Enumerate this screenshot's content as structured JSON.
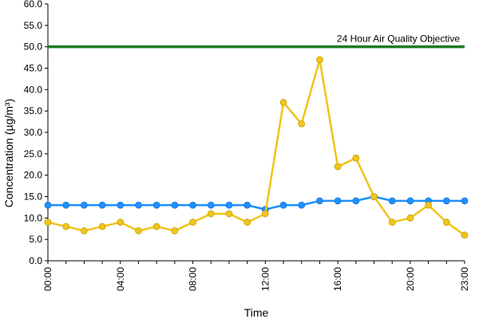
{
  "chart_data": {
    "type": "line",
    "title": "",
    "xlabel": "Time",
    "ylabel": "Concentration (µg/m³)",
    "ylim": [
      0,
      60
    ],
    "y_ticks": [
      0,
      5,
      10,
      15,
      20,
      25,
      30,
      35,
      40,
      45,
      50,
      55,
      60
    ],
    "y_tick_labels": [
      "0.0",
      "5.0",
      "10.0",
      "15.0",
      "20.0",
      "25.0",
      "30.0",
      "35.0",
      "40.0",
      "45.0",
      "50.0",
      "55.0",
      "60.0"
    ],
    "x_hours": [
      0,
      1,
      2,
      3,
      4,
      5,
      6,
      7,
      8,
      9,
      10,
      11,
      12,
      13,
      14,
      15,
      16,
      17,
      18,
      19,
      20,
      21,
      22,
      23
    ],
    "x_tick_labels": [
      {
        "hour": 0,
        "label": "00:00"
      },
      {
        "hour": 4,
        "label": "04:00"
      },
      {
        "hour": 8,
        "label": "08:00"
      },
      {
        "hour": 12,
        "label": "12:00"
      },
      {
        "hour": 16,
        "label": "16:00"
      },
      {
        "hour": 20,
        "label": "20:00"
      },
      {
        "hour": 23,
        "label": "23:00"
      }
    ],
    "grid": false,
    "reference_line": {
      "label": "24 Hour Air Quality Objective",
      "value": 50,
      "color": "#1f7a1f"
    },
    "series": [
      {
        "color": "#1e90ff",
        "values": [
          13,
          13,
          13,
          13,
          13,
          13,
          13,
          13,
          13,
          13,
          13,
          13,
          12,
          13,
          13,
          14,
          14,
          14,
          15,
          14,
          14,
          14,
          14,
          14
        ]
      },
      {
        "color": "#f0c419",
        "values": [
          9,
          8,
          7,
          8,
          9,
          7,
          8,
          7,
          9,
          11,
          11,
          9,
          11,
          37,
          32,
          47,
          22,
          24,
          15,
          9,
          10,
          13,
          9,
          6
        ]
      }
    ]
  }
}
